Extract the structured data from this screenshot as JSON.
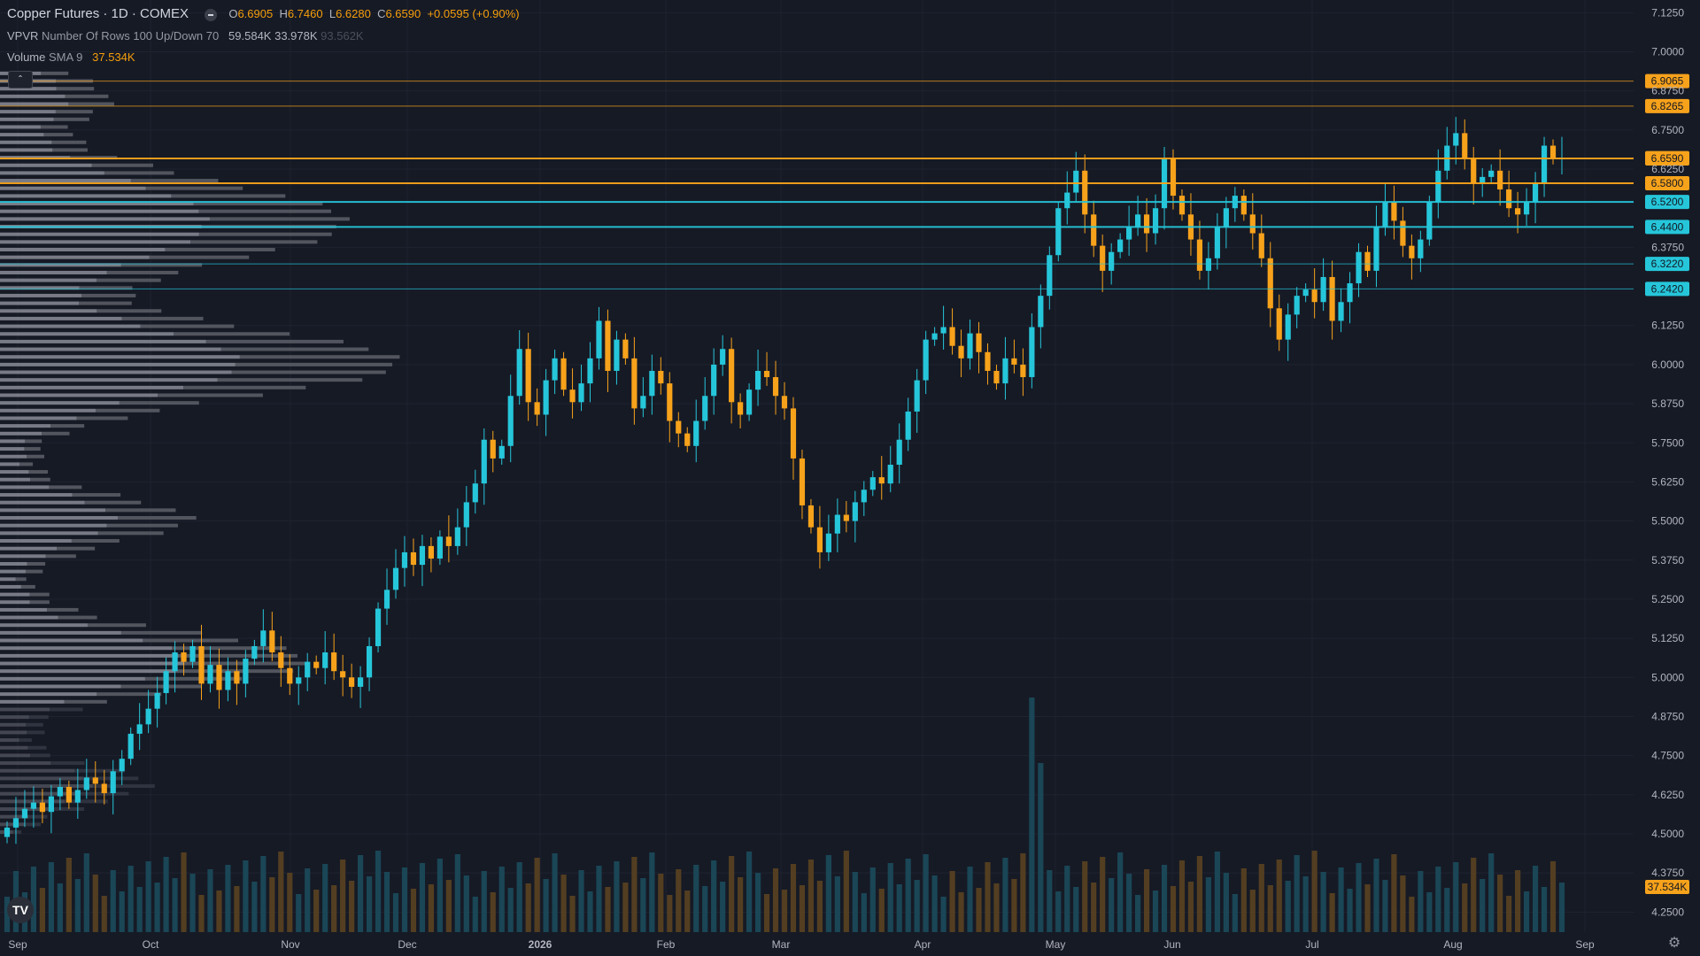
{
  "legend": {
    "symbol": "Copper Futures · 1D · COMEX",
    "open_label": "O",
    "open": "6.6905",
    "high_label": "H",
    "high": "6.7460",
    "low_label": "L",
    "low": "6.6280",
    "close_label": "C",
    "close": "6.6590",
    "change": "+0.0595 (+0.90%)",
    "vpvr_name": "VPVR",
    "vpvr_params": "Number Of Rows 100 Up/Down 70",
    "vpvr_up": "59.584K",
    "vpvr_down": "33.978K",
    "vpvr_total": "93.562K",
    "volume_name": "Volume",
    "volume_params": "SMA 9",
    "volume_value": "37.534K",
    "collapse_icon": "chevron-up-icon",
    "logo_text": "TV"
  },
  "colors": {
    "background": "#161a25",
    "up": "#26c6da",
    "down": "#f7a21b",
    "orange_level": "#f7a21b",
    "cyan_level": "#26c6da",
    "grid": "#1f2330",
    "axis_text": "#b2b5be"
  },
  "chart_data": {
    "type": "candlestick",
    "price_axis": [
      "7.1250",
      "7.0000",
      "6.8750",
      "6.7500",
      "6.6250",
      "6.3750",
      "6.1250",
      "6.0000",
      "5.8750",
      "5.7500",
      "5.6250",
      "5.5000",
      "5.3750",
      "5.2500",
      "5.1250",
      "5.0000",
      "4.8750",
      "4.7500",
      "4.6250",
      "4.5000",
      "4.3750",
      "4.2500"
    ],
    "ylim": [
      4.2,
      7.15
    ],
    "time_axis": [
      "Sep",
      "Oct",
      "Nov",
      "Dec",
      "2026",
      "Feb",
      "Mar",
      "Apr",
      "May",
      "Jun",
      "Jul",
      "Aug",
      "Sep"
    ],
    "levels": [
      {
        "price": 6.9065,
        "label": "6.9065",
        "color": "orange",
        "style": "thin"
      },
      {
        "price": 6.8265,
        "label": "6.8265",
        "color": "orange",
        "style": "thin"
      },
      {
        "price": 6.66,
        "label": "6.6600",
        "color": "orange",
        "style": "badge"
      },
      {
        "price": 6.659,
        "label": "6.6590",
        "color": "orange",
        "style": "thick"
      },
      {
        "price": 6.58,
        "label": "6.5800",
        "color": "orange",
        "style": "thick"
      },
      {
        "price": 6.52,
        "label": "6.5200",
        "color": "cyan",
        "style": "thick"
      },
      {
        "price": 6.44,
        "label": "6.4400",
        "color": "cyan",
        "style": "thick"
      },
      {
        "price": 6.322,
        "label": "6.3220",
        "color": "cyan",
        "style": "thin"
      },
      {
        "price": 6.242,
        "label": "6.2420",
        "color": "cyan",
        "style": "thin"
      }
    ],
    "volume_badge": "37.534K",
    "closes": [
      4.52,
      4.55,
      4.58,
      4.6,
      4.57,
      4.62,
      4.65,
      4.6,
      4.64,
      4.68,
      4.66,
      4.63,
      4.7,
      4.74,
      4.82,
      4.85,
      4.9,
      4.95,
      5.02,
      5.08,
      5.05,
      5.1,
      4.98,
      5.04,
      4.96,
      5.02,
      4.98,
      5.06,
      5.1,
      5.15,
      5.08,
      5.03,
      4.98,
      5.0,
      5.05,
      5.03,
      5.08,
      5.02,
      5.0,
      4.97,
      5.0,
      5.1,
      5.22,
      5.28,
      5.35,
      5.4,
      5.36,
      5.42,
      5.38,
      5.45,
      5.42,
      5.48,
      5.56,
      5.62,
      5.76,
      5.7,
      5.74,
      5.9,
      6.05,
      5.88,
      5.84,
      5.95,
      6.02,
      5.92,
      5.88,
      5.94,
      6.02,
      6.14,
      5.98,
      6.08,
      6.02,
      5.86,
      5.9,
      5.98,
      5.94,
      5.82,
      5.78,
      5.74,
      5.82,
      5.9,
      6.0,
      6.05,
      5.88,
      5.84,
      5.92,
      5.98,
      5.96,
      5.9,
      5.86,
      5.7,
      5.55,
      5.48,
      5.4,
      5.46,
      5.52,
      5.5,
      5.56,
      5.6,
      5.64,
      5.62,
      5.68,
      5.76,
      5.85,
      5.95,
      6.08,
      6.1,
      6.12,
      6.06,
      6.02,
      6.1,
      6.04,
      5.98,
      5.94,
      6.02,
      6.0,
      5.96,
      6.12,
      6.22,
      6.35,
      6.5,
      6.55,
      6.62,
      6.48,
      6.38,
      6.3,
      6.36,
      6.4,
      6.44,
      6.48,
      6.42,
      6.5,
      6.66,
      6.54,
      6.48,
      6.4,
      6.3,
      6.34,
      6.44,
      6.5,
      6.54,
      6.48,
      6.42,
      6.34,
      6.18,
      6.08,
      6.16,
      6.22,
      6.24,
      6.2,
      6.28,
      6.14,
      6.2,
      6.26,
      6.36,
      6.3,
      6.44,
      6.52,
      6.46,
      6.38,
      6.34,
      6.4,
      6.52,
      6.62,
      6.7,
      6.74,
      6.66,
      6.58,
      6.6,
      6.62,
      6.56,
      6.5,
      6.48,
      6.52,
      6.58,
      6.7,
      6.66,
      6.66
    ]
  }
}
